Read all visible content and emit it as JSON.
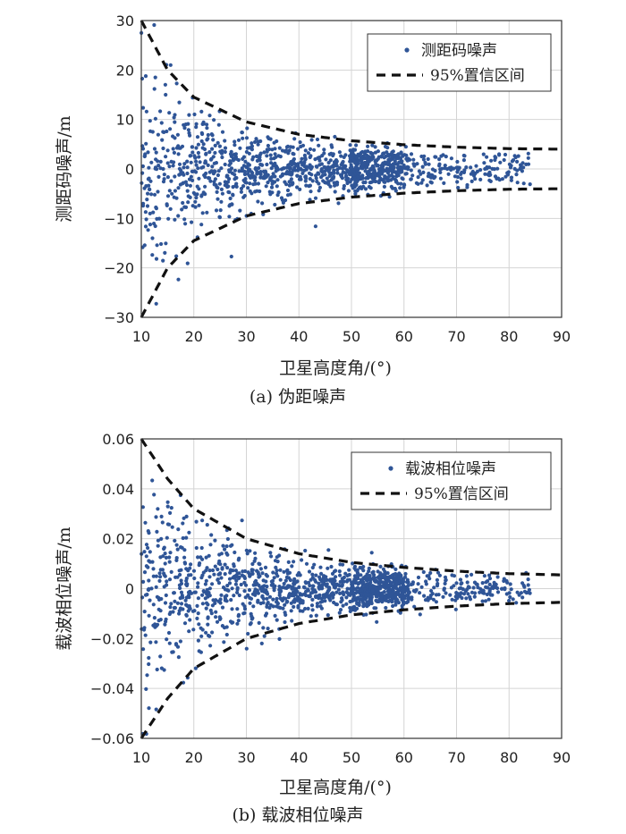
{
  "chart_data": [
    {
      "type": "scatter",
      "panel": "a",
      "caption": "(a) 伪距噪声",
      "xlabel": "卫星高度角/(°)",
      "ylabel": "测距码噪声/m",
      "xlim": [
        10,
        90
      ],
      "ylim": [
        -30,
        30
      ],
      "xticks": [
        10,
        20,
        30,
        40,
        50,
        60,
        70,
        80,
        90
      ],
      "yticks": [
        -30,
        -20,
        -10,
        0,
        10,
        20,
        30
      ],
      "ytick_labels": [
        "−30",
        "−20",
        "−10",
        "0",
        "10",
        "20",
        "30"
      ],
      "grid": true,
      "legend_position": "top-right",
      "series": [
        {
          "name": "测距码噪声",
          "kind": "scatter",
          "color": "#2f5597",
          "x_range": [
            10,
            84
          ],
          "point_count": 1300
        },
        {
          "name": "95%置信区间",
          "kind": "dashed-envelope",
          "color": "#111111",
          "upper": [
            [
              10,
              30
            ],
            [
              15,
              20
            ],
            [
              20,
              14.5
            ],
            [
              30,
              9.5
            ],
            [
              40,
              7
            ],
            [
              50,
              5.7
            ],
            [
              60,
              4.9
            ],
            [
              70,
              4.4
            ],
            [
              80,
              4.1
            ],
            [
              90,
              4
            ]
          ],
          "lower": [
            [
              10,
              -30
            ],
            [
              15,
              -20
            ],
            [
              20,
              -14.5
            ],
            [
              30,
              -9.5
            ],
            [
              40,
              -7
            ],
            [
              50,
              -5.7
            ],
            [
              60,
              -4.9
            ],
            [
              70,
              -4.4
            ],
            [
              80,
              -4.1
            ],
            [
              90,
              -4
            ]
          ]
        }
      ]
    },
    {
      "type": "scatter",
      "panel": "b",
      "caption": "(b) 载波相位噪声",
      "xlabel": "卫星高度角/(°)",
      "ylabel": "载波相位噪声/m",
      "xlim": [
        10,
        90
      ],
      "ylim": [
        -0.06,
        0.06
      ],
      "xticks": [
        10,
        20,
        30,
        40,
        50,
        60,
        70,
        80,
        90
      ],
      "yticks": [
        -0.06,
        -0.04,
        -0.02,
        0,
        0.02,
        0.04,
        0.06
      ],
      "ytick_labels": [
        "−0.06",
        "−0.04",
        "−0.02",
        "0",
        "0.02",
        "0.04",
        "0.06"
      ],
      "grid": true,
      "legend_position": "top-right",
      "series": [
        {
          "name": "载波相位噪声",
          "kind": "scatter",
          "color": "#2f5597",
          "x_range": [
            10,
            84
          ],
          "point_count": 1400
        },
        {
          "name": "95%置信区间",
          "kind": "dashed-envelope",
          "color": "#111111",
          "upper": [
            [
              10,
              0.06
            ],
            [
              15,
              0.044
            ],
            [
              20,
              0.032
            ],
            [
              30,
              0.02
            ],
            [
              40,
              0.014
            ],
            [
              50,
              0.0105
            ],
            [
              60,
              0.0085
            ],
            [
              70,
              0.007
            ],
            [
              80,
              0.006
            ],
            [
              90,
              0.0055
            ]
          ],
          "lower": [
            [
              10,
              -0.06
            ],
            [
              15,
              -0.044
            ],
            [
              20,
              -0.032
            ],
            [
              30,
              -0.02
            ],
            [
              40,
              -0.014
            ],
            [
              50,
              -0.0105
            ],
            [
              60,
              -0.0085
            ],
            [
              70,
              -0.007
            ],
            [
              80,
              -0.006
            ],
            [
              90,
              -0.0055
            ]
          ]
        }
      ]
    }
  ]
}
